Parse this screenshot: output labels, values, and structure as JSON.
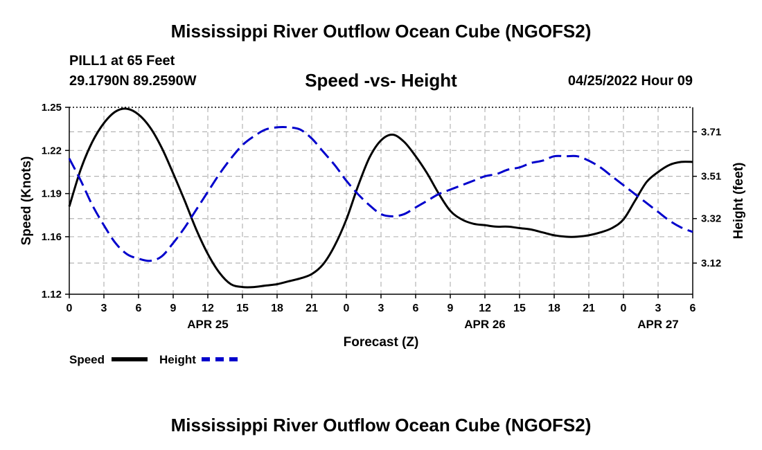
{
  "header": {
    "title": "Mississippi River Outflow Ocean Cube (NGOFS2)",
    "station": "PILL1 at 65 Feet",
    "coordinates": "29.1790N  89.2590W",
    "subtitle": "Speed -vs- Height",
    "datetime": "04/25/2022 Hour 09"
  },
  "footer": {
    "title": "Mississippi River Outflow Ocean Cube (NGOFS2)"
  },
  "legend": {
    "speed_label": "Speed",
    "height_label": "Height"
  },
  "colors": {
    "speed": "#000000",
    "height": "#0000cc",
    "grid": "#b4b4b4"
  },
  "chart_data": {
    "type": "line",
    "title": "Speed -vs- Height",
    "xlabel": "Forecast (Z)",
    "ylabel": "Speed (Knots)",
    "y2label": "Height (feet)",
    "x_unit": "forecast hour",
    "x_range": [
      0,
      54
    ],
    "x_ticks": [
      0,
      3,
      6,
      9,
      12,
      15,
      18,
      21,
      24,
      27,
      30,
      33,
      36,
      39,
      42,
      45,
      48,
      51,
      54
    ],
    "x_tick_labels": [
      "0",
      "3",
      "6",
      "9",
      "12",
      "15",
      "18",
      "21",
      "0",
      "3",
      "6",
      "9",
      "12",
      "15",
      "18",
      "21",
      "0",
      "3",
      "6"
    ],
    "date_labels": [
      {
        "x": 12,
        "label": "APR 25"
      },
      {
        "x": 36,
        "label": "APR 26"
      },
      {
        "x": 51,
        "label": "APR 27"
      }
    ],
    "ylim": [
      1.12,
      1.25
    ],
    "y_ticks": [
      1.12,
      1.16,
      1.19,
      1.22,
      1.25
    ],
    "y2lim": [
      2.98,
      3.82
    ],
    "y2_ticks": [
      3.12,
      3.32,
      3.51,
      3.71
    ],
    "series": [
      {
        "name": "Speed",
        "axis": "left",
        "style": "solid",
        "x": [
          0,
          1,
          2,
          3,
          4,
          5,
          6,
          7,
          8,
          9,
          10,
          11,
          12,
          13,
          14,
          15,
          16,
          17,
          18,
          19,
          20,
          21,
          22,
          23,
          24,
          25,
          26,
          27,
          28,
          29,
          30,
          31,
          32,
          33,
          34,
          35,
          36,
          37,
          38,
          39,
          40,
          41,
          42,
          43,
          44,
          45,
          46,
          47,
          48,
          49,
          50,
          51,
          52,
          53,
          54
        ],
        "values": [
          1.181,
          1.207,
          1.226,
          1.239,
          1.247,
          1.249,
          1.245,
          1.236,
          1.222,
          1.204,
          1.185,
          1.165,
          1.148,
          1.135,
          1.127,
          1.125,
          1.125,
          1.126,
          1.127,
          1.129,
          1.131,
          1.134,
          1.141,
          1.154,
          1.172,
          1.195,
          1.215,
          1.227,
          1.231,
          1.226,
          1.216,
          1.204,
          1.19,
          1.178,
          1.172,
          1.169,
          1.168,
          1.167,
          1.167,
          1.166,
          1.165,
          1.163,
          1.161,
          1.16,
          1.16,
          1.161,
          1.163,
          1.166,
          1.172,
          1.185,
          1.198,
          1.205,
          1.21,
          1.212,
          1.212
        ]
      },
      {
        "name": "Height",
        "axis": "right",
        "style": "dashed",
        "x": [
          0,
          1,
          2,
          3,
          4,
          5,
          6,
          7,
          8,
          9,
          10,
          11,
          12,
          13,
          14,
          15,
          16,
          17,
          18,
          19,
          20,
          21,
          22,
          23,
          24,
          25,
          26,
          27,
          28,
          29,
          30,
          31,
          32,
          33,
          34,
          35,
          36,
          37,
          38,
          39,
          40,
          41,
          42,
          43,
          44,
          45,
          46,
          47,
          48,
          49,
          50,
          51,
          52,
          53,
          54
        ],
        "values": [
          3.59,
          3.49,
          3.38,
          3.29,
          3.21,
          3.16,
          3.14,
          3.13,
          3.15,
          3.21,
          3.28,
          3.36,
          3.44,
          3.52,
          3.59,
          3.65,
          3.69,
          3.72,
          3.73,
          3.73,
          3.72,
          3.68,
          3.62,
          3.56,
          3.49,
          3.43,
          3.38,
          3.34,
          3.33,
          3.34,
          3.37,
          3.4,
          3.43,
          3.45,
          3.47,
          3.49,
          3.51,
          3.52,
          3.54,
          3.55,
          3.57,
          3.58,
          3.6,
          3.6,
          3.6,
          3.58,
          3.55,
          3.51,
          3.47,
          3.43,
          3.39,
          3.35,
          3.31,
          3.28,
          3.26
        ]
      }
    ]
  }
}
